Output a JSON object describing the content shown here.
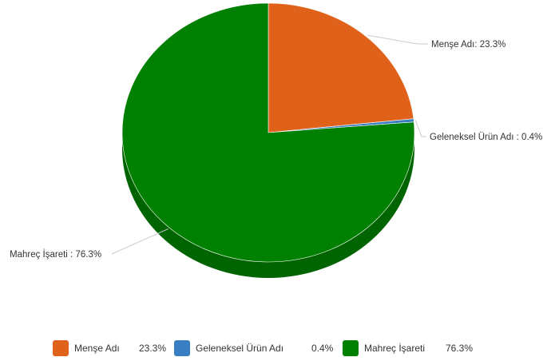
{
  "chart_data": {
    "type": "pie",
    "title": "",
    "slices": [
      {
        "name": "Menşe Adı",
        "value": 23.3,
        "color": "#e0621a",
        "label": "Menşe Adı: 23.3%",
        "legend_value": "23.3%"
      },
      {
        "name": "Geleneksel Ürün Adı",
        "value": 0.4,
        "color": "#3a7ec2",
        "label": "Geleneksel Ürün Adı : 0.4%",
        "legend_value": "0.4%"
      },
      {
        "name": "Mahreç İşareti",
        "value": 76.3,
        "color": "#008000",
        "label": "Mahreç İşareti : 76.3%",
        "legend_value": "76.3%"
      }
    ],
    "legend_position": "bottom"
  }
}
